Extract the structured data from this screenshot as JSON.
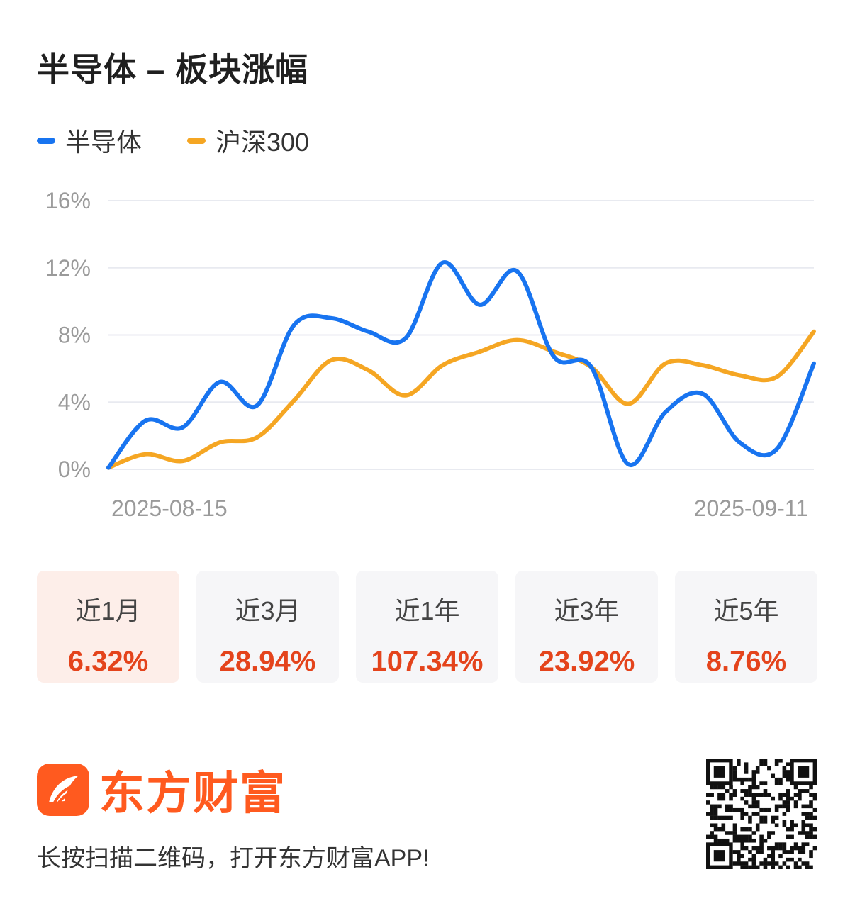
{
  "header": {
    "title": "半导体 – 板块涨幅"
  },
  "legend": [
    {
      "label": "半导体",
      "color": "#1874f0"
    },
    {
      "label": "沪深300",
      "color": "#f5a623"
    }
  ],
  "chart_data": {
    "type": "line",
    "title": "",
    "xlabel": "",
    "ylabel": "",
    "ylim": [
      0,
      16
    ],
    "yticks": [
      "0%",
      "4%",
      "8%",
      "12%",
      "16%"
    ],
    "x_tick_labels": [
      "2025-08-15",
      "2025-09-11"
    ],
    "grid": true,
    "legend_position": "top-left",
    "series": [
      {
        "name": "半导体",
        "color": "#1874f0",
        "values": [
          0.1,
          2.9,
          2.5,
          5.2,
          3.8,
          8.6,
          9.0,
          8.2,
          7.8,
          12.3,
          9.8,
          11.8,
          6.7,
          6.1,
          0.3,
          3.4,
          4.5,
          1.6,
          1.2,
          6.3
        ]
      },
      {
        "name": "沪深300",
        "color": "#f5a623",
        "values": [
          0.1,
          0.9,
          0.5,
          1.6,
          1.9,
          4.1,
          6.5,
          5.9,
          4.4,
          6.2,
          7.0,
          7.7,
          7.0,
          6.1,
          3.9,
          6.3,
          6.2,
          5.6,
          5.5,
          8.2
        ]
      }
    ]
  },
  "periods": [
    {
      "label": "近1月",
      "value": "6.32%",
      "active": true
    },
    {
      "label": "近3月",
      "value": "28.94%",
      "active": false
    },
    {
      "label": "近1年",
      "value": "107.34%",
      "active": false
    },
    {
      "label": "近3年",
      "value": "23.92%",
      "active": false
    },
    {
      "label": "近5年",
      "value": "8.76%",
      "active": false
    }
  ],
  "footer": {
    "brand_name": "东方财富",
    "brand_color": "#ff5a1f",
    "tagline": "长按扫描二维码，打开东方财富APP!",
    "qr_icon": "qr-code-icon"
  }
}
